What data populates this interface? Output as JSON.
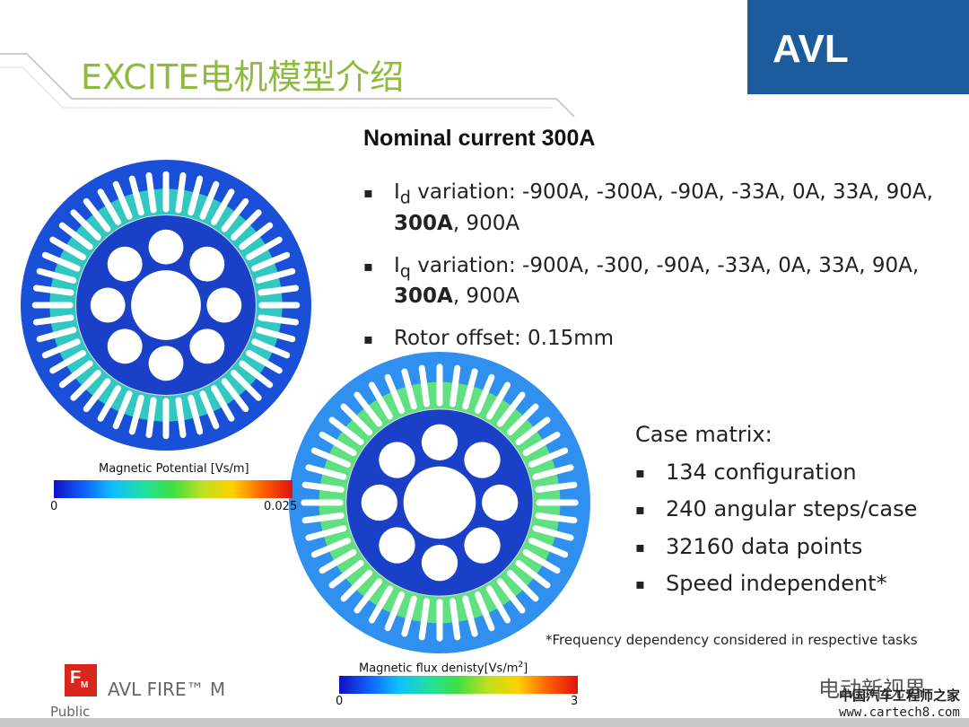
{
  "header": {
    "title": "EXCITE电机模型介绍",
    "logo": "AVL"
  },
  "content": {
    "heading": "Nominal current 300A",
    "bullets": [
      {
        "parts": [
          "I",
          "d",
          " variation: -900A, -300A, -90A, -33A, 0A, 33A, 90A, ",
          "300A",
          ", 900A"
        ]
      },
      {
        "parts": [
          "I",
          "q",
          " variation: -900A, -300, -90A, -33A, 0A, 33A, 90A, ",
          "300A",
          ", 900A"
        ]
      },
      {
        "parts": [
          "Rotor offset: 0.15mm"
        ]
      }
    ],
    "case_matrix": {
      "title": "Case matrix:",
      "items": [
        "134 configuration",
        "240 angular steps/case",
        "32160 data points",
        "Speed independent*"
      ]
    },
    "footnote": "*Frequency dependency considered in respective tasks"
  },
  "figures": [
    {
      "label": "Magnetic Potential [Vs/m]",
      "min": "0",
      "max": "0.025"
    },
    {
      "label": [
        "Magnetic flux denisty[Vs/m",
        "2",
        "]"
      ],
      "min": "0",
      "max": "3"
    }
  ],
  "footer": {
    "icon": [
      "F",
      "M"
    ],
    "product": "AVL FIRE™ M",
    "classification": "Public",
    "watermark": "电动新视界",
    "site_name": "中国汽车工程师之家",
    "site_url": "www.cartech8.com"
  }
}
